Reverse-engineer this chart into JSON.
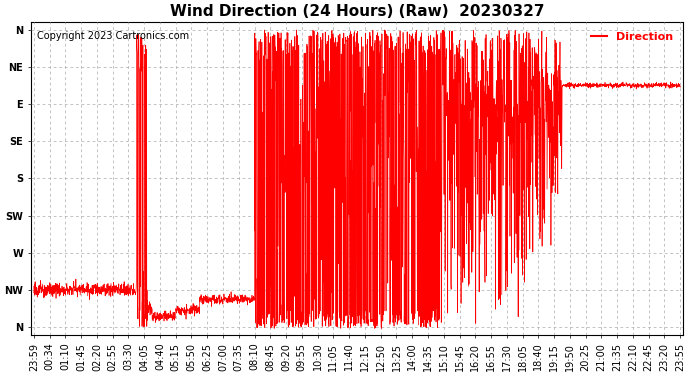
{
  "title": "Wind Direction (24 Hours) (Raw)  20230327",
  "copyright_text": "Copyright 2023 Cartronics.com",
  "legend_label": "Direction",
  "legend_color": "#ff0000",
  "line_color": "#ff0000",
  "background_color": "#ffffff",
  "grid_color": "#aaaaaa",
  "ytick_labels": [
    "N",
    "NW",
    "W",
    "SW",
    "S",
    "SE",
    "E",
    "NE",
    "N"
  ],
  "ytick_values": [
    360,
    315,
    270,
    225,
    180,
    135,
    90,
    45,
    0
  ],
  "ylim": [
    370,
    -10
  ],
  "x_tick_labels": [
    "23:59",
    "00:34",
    "01:10",
    "01:45",
    "02:20",
    "02:55",
    "03:30",
    "04:05",
    "04:40",
    "05:15",
    "05:50",
    "06:25",
    "07:00",
    "07:35",
    "08:10",
    "08:45",
    "09:20",
    "09:55",
    "10:30",
    "11:05",
    "11:40",
    "12:15",
    "12:50",
    "13:25",
    "14:00",
    "14:35",
    "15:10",
    "15:45",
    "16:20",
    "16:55",
    "17:30",
    "18:05",
    "18:40",
    "19:15",
    "19:50",
    "20:25",
    "21:00",
    "21:35",
    "22:10",
    "22:45",
    "23:20",
    "23:55"
  ],
  "title_fontsize": 11,
  "label_fontsize": 7,
  "copyright_fontsize": 7,
  "tick_label_fontsize": 7
}
